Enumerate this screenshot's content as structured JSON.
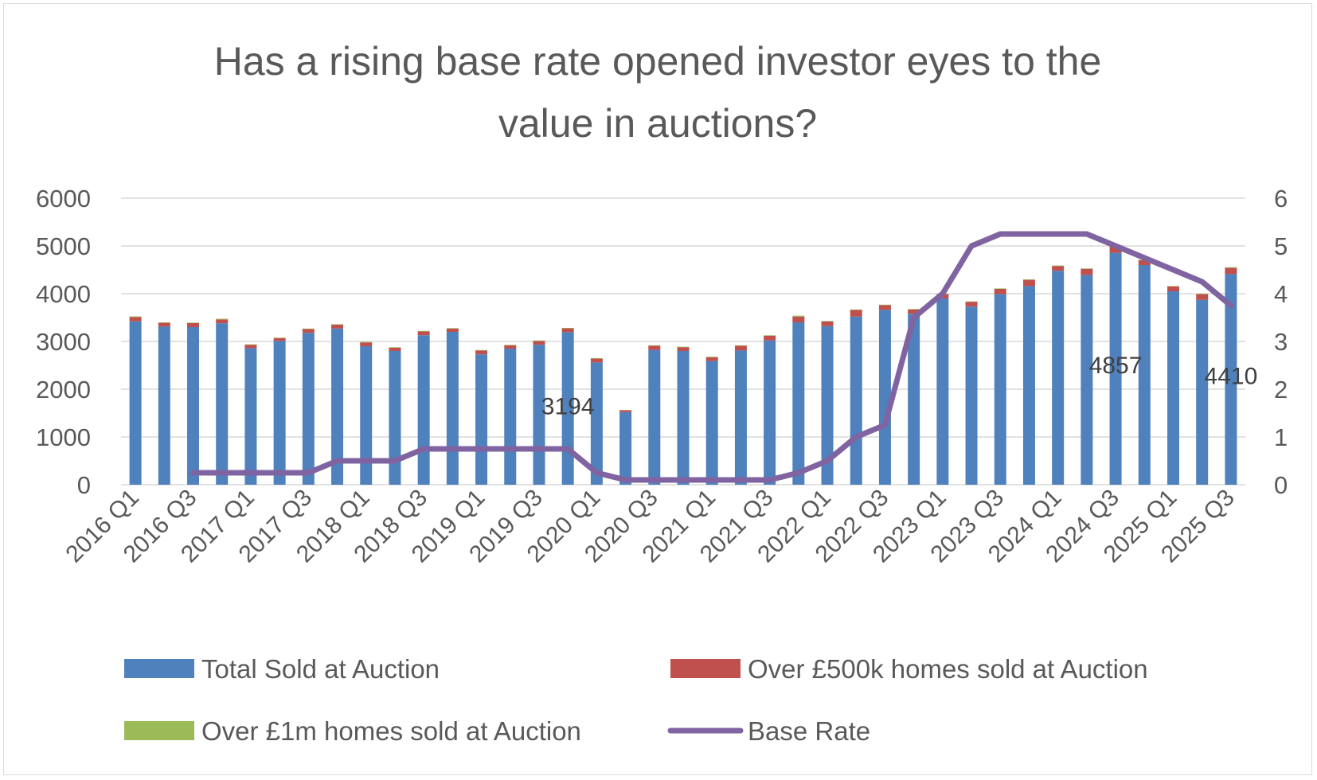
{
  "chart_data": {
    "type": "bar",
    "stacked": true,
    "title_lines": [
      "Has a rising base rate opened investor eyes to the",
      "value in auctions?"
    ],
    "xlabel": "",
    "ylabel": "",
    "ylim": [
      0,
      6000
    ],
    "yticks": [
      "0",
      "1000",
      "2000",
      "3000",
      "4000",
      "5000",
      "6000"
    ],
    "y2lim": [
      0,
      6
    ],
    "y2ticks": [
      "0",
      "1",
      "2",
      "3",
      "4",
      "5",
      "6"
    ],
    "grid": true,
    "legend_position": "bottom",
    "categories": [
      "2016 Q1",
      "2016 Q2",
      "2016 Q3",
      "2016 Q4",
      "2017 Q1",
      "2017 Q2",
      "2017 Q3",
      "2017 Q4",
      "2018 Q1",
      "2018 Q2",
      "2018 Q3",
      "2018 Q4",
      "2019 Q1",
      "2019 Q2",
      "2019 Q3",
      "2019 Q4",
      "2020 Q1",
      "2020 Q2",
      "2020 Q3",
      "2020 Q4",
      "2021 Q1",
      "2021 Q2",
      "2021 Q3",
      "2021 Q4",
      "2022 Q1",
      "2022 Q2",
      "2022 Q3",
      "2022 Q4",
      "2023 Q1",
      "2023 Q2",
      "2023 Q3",
      "2023 Q4",
      "2024 Q1",
      "2024 Q2",
      "2024 Q3",
      "2024 Q4",
      "2025 Q1",
      "2025 Q2",
      "2025 Q3"
    ],
    "shown_tick_labels": [
      "2016 Q1",
      "2016 Q3",
      "2017 Q1",
      "2017 Q3",
      "2018 Q1",
      "2018 Q3",
      "2019 Q1",
      "2019 Q3",
      "2020 Q1",
      "2020 Q3",
      "2021 Q1",
      "2021 Q3",
      "2022 Q1",
      "2022 Q3",
      "2023 Q1",
      "2023 Q3",
      "2024 Q1",
      "2024 Q3",
      "2025 Q1",
      "2025 Q3"
    ],
    "series": [
      {
        "name": "Total Sold at Auction",
        "color": "#4f81bd",
        "axis": "left",
        "values": [
          3420,
          3310,
          3300,
          3380,
          2860,
          3010,
          3180,
          3270,
          2900,
          2800,
          3130,
          3200,
          2730,
          2850,
          2930,
          3194,
          2560,
          1520,
          2820,
          2800,
          2590,
          2810,
          3020,
          3400,
          3320,
          3520,
          3660,
          3580,
          3900,
          3730,
          3990,
          4160,
          4480,
          4390,
          4857,
          4600,
          4050,
          3870,
          4410
        ]
      },
      {
        "name": "Over £500k homes sold at Auction",
        "color": "#c0504d",
        "axis": "left",
        "values": [
          90,
          80,
          85,
          80,
          70,
          60,
          80,
          80,
          80,
          70,
          80,
          70,
          80,
          70,
          80,
          80,
          80,
          40,
          90,
          80,
          80,
          100,
          100,
          120,
          100,
          140,
          100,
          90,
          90,
          100,
          110,
          130,
          100,
          130,
          130,
          100,
          100,
          120,
          130
        ]
      },
      {
        "name": "Over £1m homes sold at Auction",
        "color": "#9bbb59",
        "axis": "left",
        "values": [
          15,
          10,
          10,
          15,
          10,
          10,
          10,
          10,
          10,
          10,
          10,
          10,
          10,
          10,
          10,
          10,
          10,
          5,
          10,
          10,
          10,
          10,
          10,
          20,
          10,
          10,
          10,
          10,
          10,
          10,
          10,
          10,
          10,
          10,
          15,
          10,
          10,
          10,
          15
        ]
      },
      {
        "name": "Base Rate",
        "color": "#8064a2",
        "axis": "right",
        "type": "line",
        "values": [
          null,
          null,
          0.25,
          0.25,
          0.25,
          0.25,
          0.25,
          0.5,
          0.5,
          0.5,
          0.75,
          0.75,
          0.75,
          0.75,
          0.75,
          0.75,
          0.25,
          0.1,
          0.1,
          0.1,
          0.1,
          0.1,
          0.1,
          0.25,
          0.5,
          1.0,
          1.25,
          3.5,
          4.0,
          5.0,
          5.25,
          5.25,
          5.25,
          5.25,
          5.0,
          4.75,
          4.5,
          4.25,
          3.75
        ]
      }
    ],
    "annotations": [
      {
        "category_index": 15,
        "label": "3194"
      },
      {
        "category_index": 34,
        "label": "4857"
      },
      {
        "category_index": 38,
        "label": "4410"
      }
    ]
  }
}
